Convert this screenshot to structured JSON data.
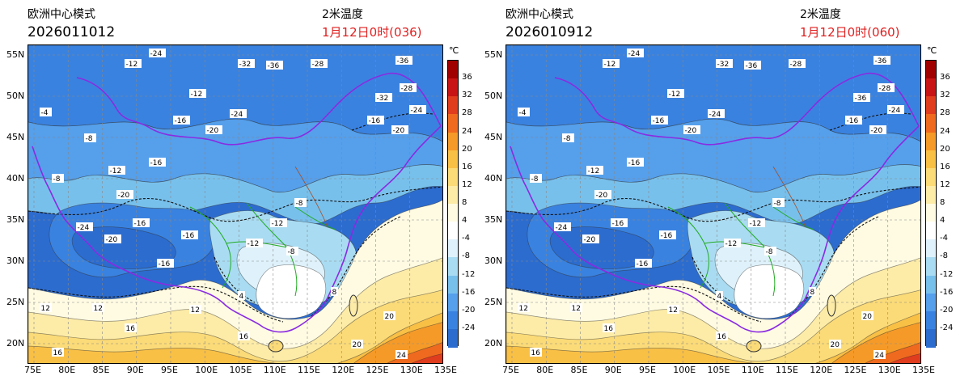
{
  "panels": [
    {
      "model": "欧洲中心模式",
      "run_time": "2026011012",
      "variable": "2米温度",
      "valid_time": "1月12日0时(036)",
      "field_labels": [
        "-24",
        "-28",
        "-32",
        "-36",
        "-36",
        "-28",
        "-32",
        "-24",
        "-20",
        "-16",
        "-12",
        "-12",
        "-16",
        "-8",
        "-4",
        "-8",
        "-12",
        "-16",
        "-20",
        "-24",
        "-20",
        "-16",
        "-12",
        "-8",
        "-16",
        "-12",
        "-8",
        "-20",
        "-24",
        "-16",
        "12",
        "16",
        "20",
        "12",
        "16",
        "20",
        "24",
        "8",
        "4",
        "12",
        "16"
      ]
    },
    {
      "model": "欧洲中心模式",
      "run_time": "2026010912",
      "variable": "2米温度",
      "valid_time": "1月12日0时(060)",
      "field_labels": [
        "-24",
        "-28",
        "-32",
        "-36",
        "-36",
        "-28",
        "-36",
        "-24",
        "-20",
        "-16",
        "-12",
        "-12",
        "-16",
        "-8",
        "-4",
        "-8",
        "-12",
        "-16",
        "-20",
        "-24",
        "-20",
        "-16",
        "-12",
        "-8",
        "-16",
        "-12",
        "-8",
        "-20",
        "-24",
        "-16",
        "12",
        "16",
        "20",
        "12",
        "16",
        "20",
        "24",
        "8",
        "4",
        "12",
        "16"
      ]
    }
  ],
  "map": {
    "lon_labels": [
      "75E",
      "80E",
      "85E",
      "90E",
      "95E",
      "100E",
      "105E",
      "110E",
      "115E",
      "120E",
      "125E",
      "130E",
      "135E"
    ],
    "lat_labels": [
      "55N",
      "50N",
      "45N",
      "40N",
      "35N",
      "30N",
      "25N",
      "20N"
    ]
  },
  "colorbar": {
    "unit": "℃",
    "labels": [
      "36",
      "32",
      "28",
      "24",
      "20",
      "16",
      "12",
      "8",
      "4",
      "-4",
      "-8",
      "-12",
      "-16",
      "-20",
      "-24"
    ],
    "colors": [
      "#a00000",
      "#c81414",
      "#e03c1e",
      "#ef6a1e",
      "#f59a28",
      "#f9c046",
      "#fbdb78",
      "#fdeca8",
      "#fffbe2",
      "#ffffff",
      "#dff2fb",
      "#a9dcf2",
      "#78c0ec",
      "#559feb",
      "#3a82df",
      "#2c6ccf"
    ]
  }
}
